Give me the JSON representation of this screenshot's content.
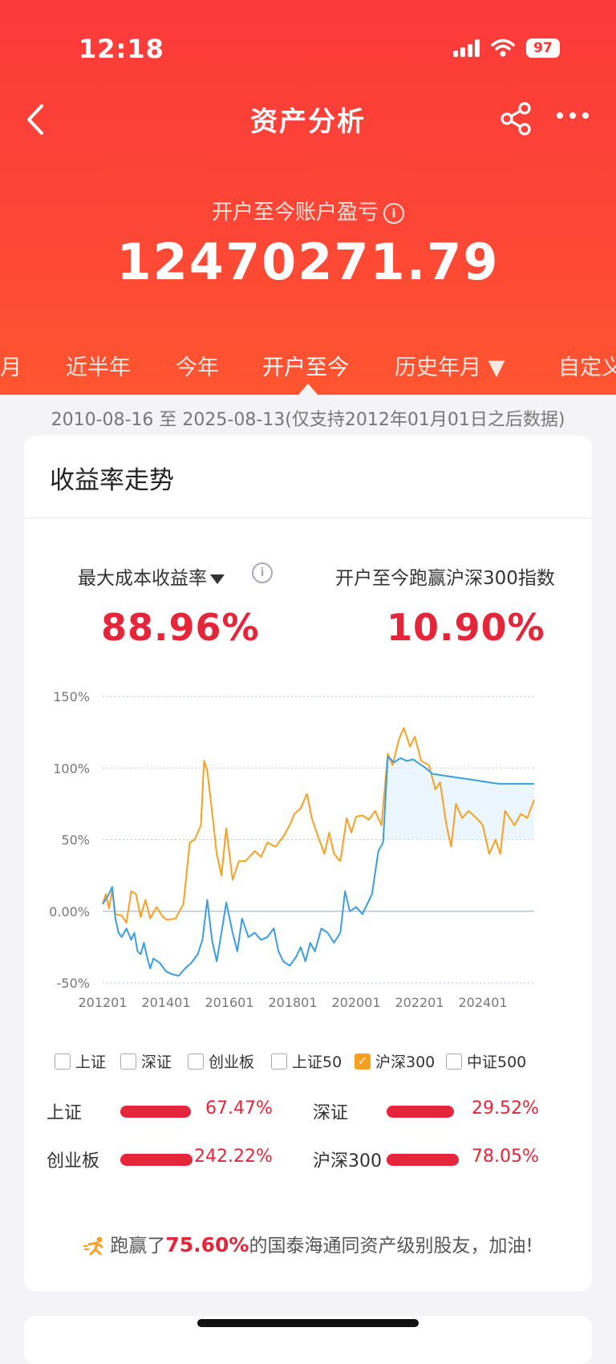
{
  "status": {
    "time": "12:18",
    "battery": "97"
  },
  "nav": {
    "title": "资产分析"
  },
  "summary": {
    "label": "开户至今账户盈亏",
    "value": "12470271.79"
  },
  "tabs": [
    "月",
    "近半年",
    "今年",
    "开户至今",
    "历史年月 ▼",
    "自定义"
  ],
  "active_tab": "开户至今",
  "date_range": "2010-08-16 至 2025-08-13(仅支持2012年01月01日之后数据)",
  "card": {
    "title": "收益率走势",
    "metric_left_label": "最大成本收益率",
    "metric_left_value": "88.96%",
    "metric_right_label": "开户至今跑赢沪深300指数",
    "metric_right_value": "10.90%"
  },
  "legend": [
    {
      "label": "上证",
      "checked": false
    },
    {
      "label": "深证",
      "checked": false
    },
    {
      "label": "创业板",
      "checked": false
    },
    {
      "label": "上证50",
      "checked": false
    },
    {
      "label": "沪深300",
      "checked": true
    },
    {
      "label": "中证500",
      "checked": false
    }
  ],
  "comparisons": [
    {
      "name": "上证",
      "value": "67.47%"
    },
    {
      "name": "深证",
      "value": "29.52%"
    },
    {
      "name": "创业板",
      "value": "242.22%"
    },
    {
      "name": "沪深300",
      "value": "78.05%"
    }
  ],
  "beat": {
    "prefix": "跑赢了",
    "percent": "75.60%",
    "suffix": "的国泰海通同资产级别股友，加油!"
  },
  "colors": {
    "header": "#fb3a3a",
    "accent": "#e4253a",
    "account_line": "#3a9ee0",
    "index_line": "#f8a023"
  },
  "chart_data": {
    "type": "line",
    "yticks": [
      "150%",
      "100%",
      "50%",
      "0.00%",
      "-50%"
    ],
    "ylim": [
      -50,
      150
    ],
    "xticks": [
      "201201",
      "201401",
      "201601",
      "201801",
      "202001",
      "202201",
      "202401"
    ],
    "xlim": [
      2012.0,
      2025.62
    ],
    "series": [
      {
        "key": "account",
        "color": "#3a9ee0",
        "points": [
          [
            2012.0,
            5
          ],
          [
            2012.15,
            10
          ],
          [
            2012.3,
            17
          ],
          [
            2012.4,
            -5
          ],
          [
            2012.5,
            -15
          ],
          [
            2012.6,
            -18
          ],
          [
            2012.75,
            -12
          ],
          [
            2012.9,
            -20
          ],
          [
            2013.0,
            -15
          ],
          [
            2013.1,
            -28
          ],
          [
            2013.2,
            -30
          ],
          [
            2013.3,
            -22
          ],
          [
            2013.4,
            -32
          ],
          [
            2013.5,
            -40
          ],
          [
            2013.6,
            -33
          ],
          [
            2013.8,
            -36
          ],
          [
            2014.0,
            -42
          ],
          [
            2014.2,
            -44
          ],
          [
            2014.4,
            -45
          ],
          [
            2014.6,
            -40
          ],
          [
            2014.8,
            -36
          ],
          [
            2015.0,
            -30
          ],
          [
            2015.15,
            -20
          ],
          [
            2015.3,
            8
          ],
          [
            2015.45,
            -20
          ],
          [
            2015.6,
            -35
          ],
          [
            2015.75,
            -15
          ],
          [
            2015.9,
            6
          ],
          [
            2016.1,
            -15
          ],
          [
            2016.25,
            -28
          ],
          [
            2016.4,
            -5
          ],
          [
            2016.6,
            -18
          ],
          [
            2016.8,
            -15
          ],
          [
            2017.0,
            -20
          ],
          [
            2017.2,
            -18
          ],
          [
            2017.4,
            -12
          ],
          [
            2017.55,
            -28
          ],
          [
            2017.7,
            -35
          ],
          [
            2017.9,
            -38
          ],
          [
            2018.1,
            -32
          ],
          [
            2018.25,
            -25
          ],
          [
            2018.4,
            -35
          ],
          [
            2018.55,
            -22
          ],
          [
            2018.7,
            -28
          ],
          [
            2018.9,
            -12
          ],
          [
            2019.1,
            -15
          ],
          [
            2019.3,
            -22
          ],
          [
            2019.5,
            -15
          ],
          [
            2019.65,
            14
          ],
          [
            2019.8,
            0
          ],
          [
            2020.0,
            3
          ],
          [
            2020.2,
            -2
          ],
          [
            2020.35,
            5
          ],
          [
            2020.5,
            12
          ],
          [
            2020.7,
            42
          ],
          [
            2020.85,
            48
          ],
          [
            2021.0,
            108
          ],
          [
            2021.2,
            104
          ],
          [
            2021.4,
            107
          ],
          [
            2021.6,
            105
          ],
          [
            2021.8,
            106
          ],
          [
            2022.0,
            103
          ],
          [
            2022.2,
            100
          ],
          [
            2022.4,
            96
          ],
          [
            2022.7,
            95
          ],
          [
            2023.0,
            94
          ],
          [
            2023.3,
            93
          ],
          [
            2023.6,
            92
          ],
          [
            2023.9,
            91
          ],
          [
            2024.2,
            90
          ],
          [
            2024.5,
            89
          ],
          [
            2025.0,
            89
          ],
          [
            2025.62,
            89
          ]
        ]
      },
      {
        "key": "index",
        "color": "#f8a023",
        "points": [
          [
            2012.0,
            5
          ],
          [
            2012.1,
            12
          ],
          [
            2012.2,
            2
          ],
          [
            2012.3,
            15
          ],
          [
            2012.4,
            -2
          ],
          [
            2012.6,
            -3
          ],
          [
            2012.75,
            -8
          ],
          [
            2012.9,
            14
          ],
          [
            2013.05,
            12
          ],
          [
            2013.2,
            -4
          ],
          [
            2013.35,
            8
          ],
          [
            2013.5,
            -5
          ],
          [
            2013.7,
            3
          ],
          [
            2013.9,
            -4
          ],
          [
            2014.05,
            -6
          ],
          [
            2014.3,
            -5
          ],
          [
            2014.55,
            5
          ],
          [
            2014.75,
            48
          ],
          [
            2014.9,
            50
          ],
          [
            2015.1,
            60
          ],
          [
            2015.2,
            105
          ],
          [
            2015.3,
            98
          ],
          [
            2015.45,
            70
          ],
          [
            2015.6,
            40
          ],
          [
            2015.75,
            25
          ],
          [
            2015.9,
            58
          ],
          [
            2016.1,
            22
          ],
          [
            2016.3,
            35
          ],
          [
            2016.5,
            35
          ],
          [
            2016.8,
            42
          ],
          [
            2017.0,
            38
          ],
          [
            2017.2,
            48
          ],
          [
            2017.45,
            45
          ],
          [
            2017.7,
            52
          ],
          [
            2017.9,
            60
          ],
          [
            2018.05,
            68
          ],
          [
            2018.25,
            72
          ],
          [
            2018.45,
            82
          ],
          [
            2018.6,
            65
          ],
          [
            2018.8,
            52
          ],
          [
            2019.0,
            40
          ],
          [
            2019.15,
            55
          ],
          [
            2019.3,
            40
          ],
          [
            2019.5,
            35
          ],
          [
            2019.7,
            65
          ],
          [
            2019.85,
            55
          ],
          [
            2020.0,
            66
          ],
          [
            2020.2,
            67
          ],
          [
            2020.4,
            64
          ],
          [
            2020.6,
            70
          ],
          [
            2020.8,
            60
          ],
          [
            2021.0,
            110
          ],
          [
            2021.15,
            102
          ],
          [
            2021.35,
            120
          ],
          [
            2021.5,
            128
          ],
          [
            2021.7,
            115
          ],
          [
            2021.85,
            122
          ],
          [
            2022.05,
            105
          ],
          [
            2022.3,
            102
          ],
          [
            2022.5,
            85
          ],
          [
            2022.65,
            90
          ],
          [
            2022.85,
            60
          ],
          [
            2023.0,
            45
          ],
          [
            2023.15,
            75
          ],
          [
            2023.35,
            65
          ],
          [
            2023.55,
            70
          ],
          [
            2023.8,
            65
          ],
          [
            2024.0,
            60
          ],
          [
            2024.2,
            40
          ],
          [
            2024.4,
            50
          ],
          [
            2024.55,
            40
          ],
          [
            2024.7,
            70
          ],
          [
            2024.85,
            65
          ],
          [
            2025.0,
            60
          ],
          [
            2025.2,
            68
          ],
          [
            2025.4,
            65
          ],
          [
            2025.62,
            78
          ]
        ]
      }
    ]
  }
}
